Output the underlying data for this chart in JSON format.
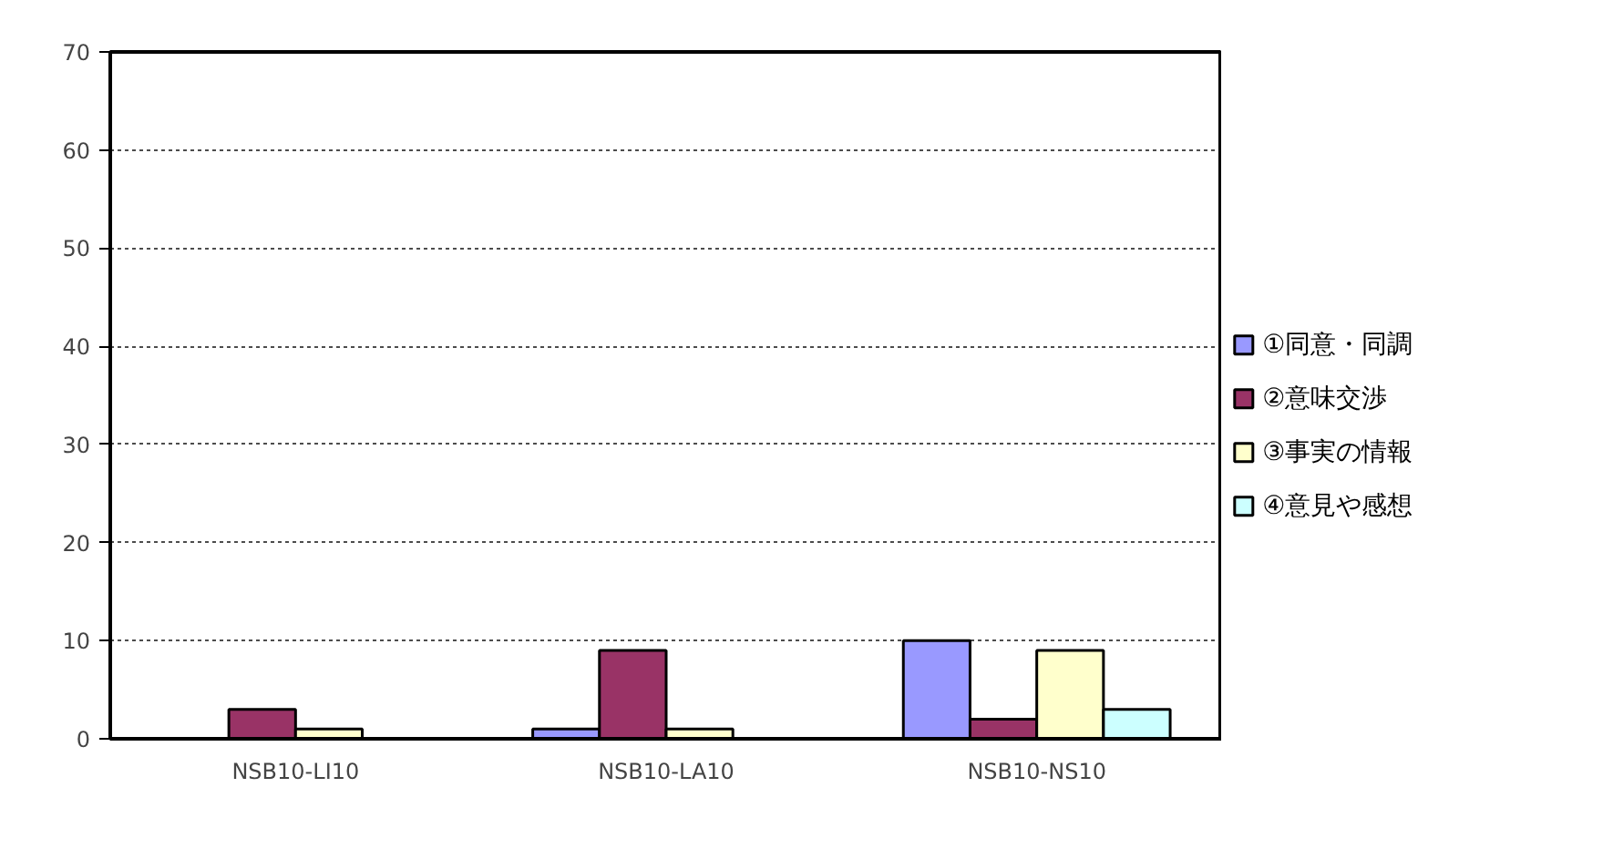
{
  "chart_data": {
    "type": "bar",
    "categories": [
      "NSB10-LI10",
      "NSB10-LA10",
      "NSB10-NS10"
    ],
    "series": [
      {
        "name": "①同意・同調",
        "color": "#9999ff",
        "values": [
          0,
          1,
          10
        ]
      },
      {
        "name": "②意味交渉",
        "color": "#993366",
        "values": [
          3,
          9,
          2
        ]
      },
      {
        "name": "③事実の情報",
        "color": "#ffffcc",
        "values": [
          1,
          1,
          9
        ]
      },
      {
        "name": "④意見や感想",
        "color": "#ccffff",
        "values": [
          0,
          0,
          3
        ]
      }
    ],
    "ylim": [
      0,
      70
    ],
    "yticks": [
      0,
      10,
      20,
      30,
      40,
      50,
      60,
      70
    ],
    "grid": "y",
    "legend": "right"
  }
}
